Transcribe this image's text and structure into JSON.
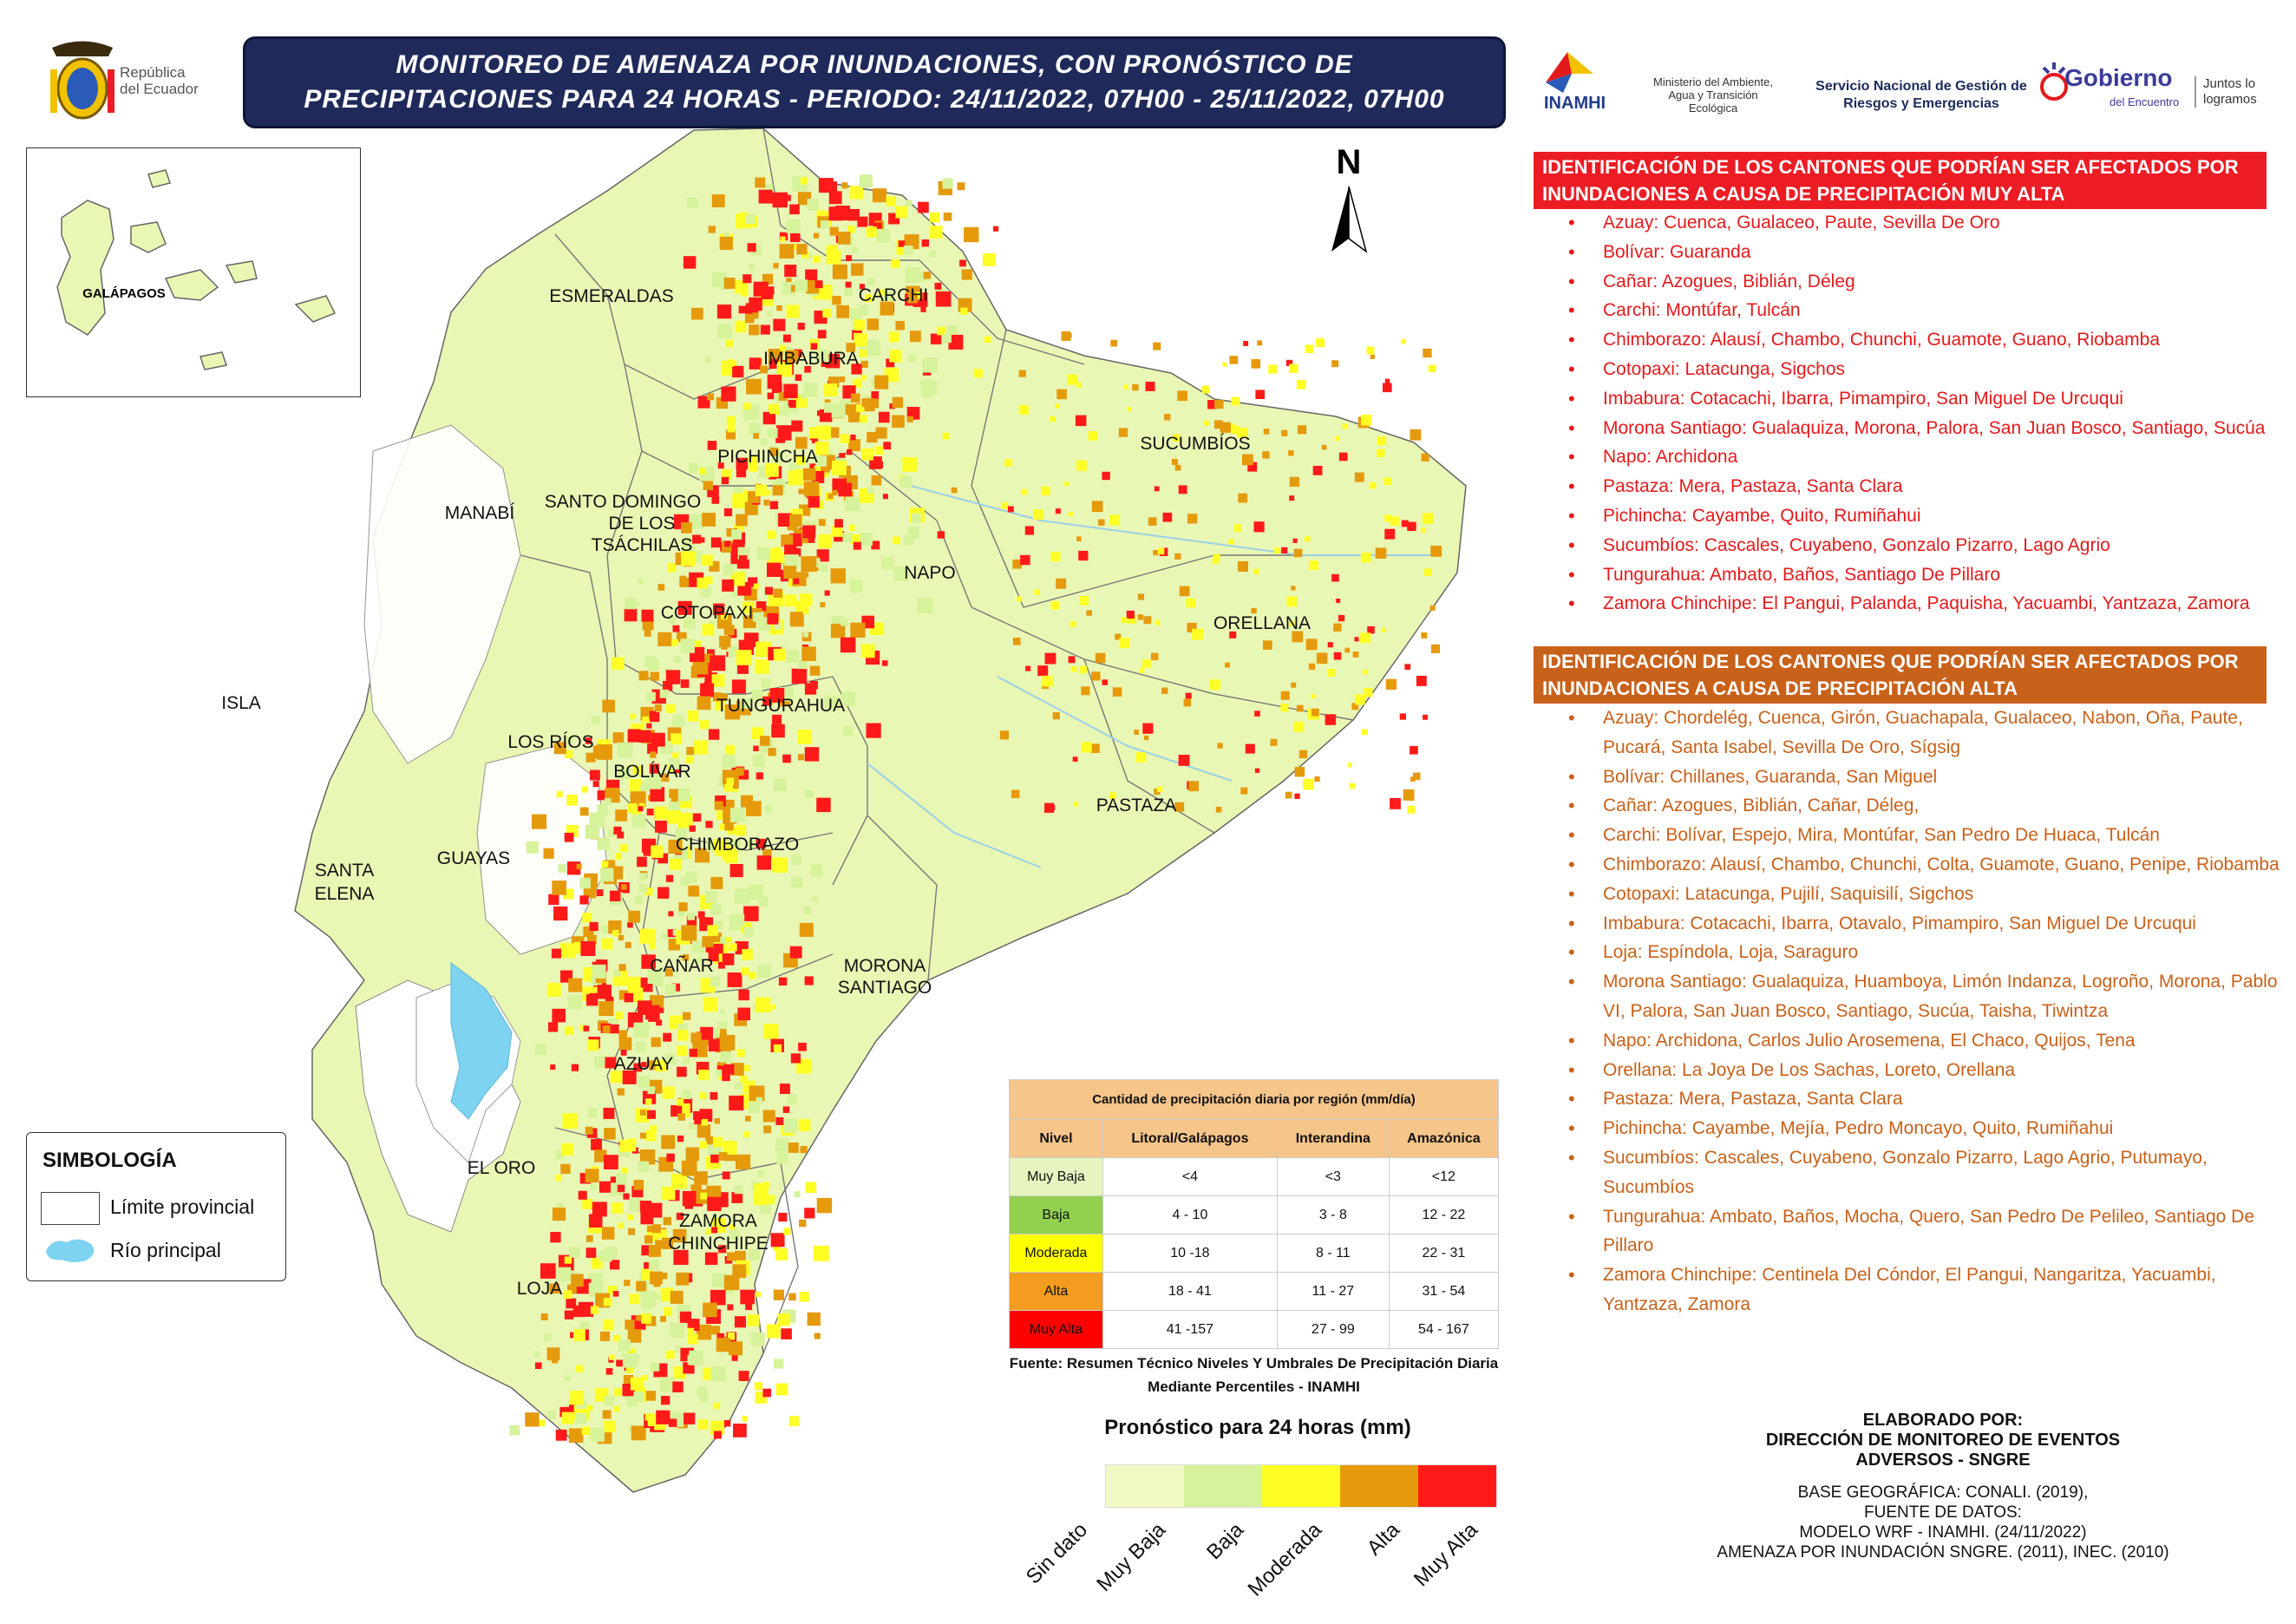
{
  "header": {
    "title_line1": "MONITOREO DE AMENAZA POR INUNDACIONES, CON PRONÓSTICO DE",
    "title_line2": "PRECIPITACIONES  PARA 24  HORAS - PERIODO: 24/11/2022, 07H00 - 25/11/2022, 07H00",
    "republica": "República\ndel Ecuador",
    "inamhi": "INAMHI",
    "ministerio": "Ministerio del Ambiente, Agua y Transición Ecológica",
    "sngre": "Servicio Nacional de Gestión de Riesgos y Emergencias",
    "gobierno": "Gobierno",
    "gobierno_sub": "del Encuentro",
    "juntos": "Juntos lo logramos"
  },
  "map": {
    "north": "N",
    "inset_label": "GALÁPAGOS",
    "provinces": [
      {
        "name": "ESMERALDAS"
      },
      {
        "name": "CARCHI"
      },
      {
        "name": "IMBABURA"
      },
      {
        "name": "SUCUMBÍOS"
      },
      {
        "name": "PICHINCHA"
      },
      {
        "name": "MANABÍ"
      },
      {
        "name": "SANTO DOMINGO"
      },
      {
        "name": "DE LOS"
      },
      {
        "name": "TSÁCHILAS"
      },
      {
        "name": "NAPO"
      },
      {
        "name": "COTOPAXI"
      },
      {
        "name": "ORELLANA"
      },
      {
        "name": "ISLA"
      },
      {
        "name": "TUNGURAHUA"
      },
      {
        "name": "LOS RÍOS"
      },
      {
        "name": "BOLÍVAR"
      },
      {
        "name": "PASTAZA"
      },
      {
        "name": "SANTA"
      },
      {
        "name": "ELENA"
      },
      {
        "name": "GUAYAS"
      },
      {
        "name": "CHIMBORAZO"
      },
      {
        "name": "CAÑAR"
      },
      {
        "name": "MORONA"
      },
      {
        "name": "SANTIAGO"
      },
      {
        "name": "AZUAY"
      },
      {
        "name": "EL ORO"
      },
      {
        "name": "ZAMORA"
      },
      {
        "name": "CHINCHIPE"
      },
      {
        "name": "LOJA"
      }
    ]
  },
  "symbology": {
    "title": "SIMBOLOGÍA",
    "items": [
      {
        "label": "Límite provincial"
      },
      {
        "label": "Río principal"
      }
    ]
  },
  "muy_alta": {
    "header": "IDENTIFICACIÓN DE LOS CANTONES QUE PODRÍAN SER AFECTADOS POR INUNDACIONES A CAUSA DE  PRECIPITACIÓN MUY ALTA",
    "color": "#ec1c24",
    "items": [
      "Azuay: Cuenca, Gualaceo, Paute, Sevilla De Oro",
      "Bolívar: Guaranda",
      "Cañar: Azogues, Biblián, Déleg",
      "Carchi: Montúfar, Tulcán",
      "Chimborazo: Alausí, Chambo, Chunchi, Guamote, Guano, Riobamba",
      "Cotopaxi: Latacunga, Sigchos",
      "Imbabura: Cotacachi, Ibarra, Pimampiro, San Miguel De Urcuqui",
      "Morona Santiago: Gualaquiza, Morona, Palora, San Juan Bosco, Santiago, Sucúa",
      "Napo: Archidona",
      "Pastaza: Mera, Pastaza, Santa Clara",
      "Pichincha: Cayambe, Quito, Rumiñahui",
      "Sucumbíos: Cascales, Cuyabeno, Gonzalo Pizarro, Lago Agrio",
      "Tungurahua: Ambato, Baños, Santiago De Pillaro",
      "Zamora Chinchipe: El Pangui, Palanda, Paquisha, Yacuambi, Yantzaza, Zamora"
    ]
  },
  "alta": {
    "header": "IDENTIFICACIÓN DE LOS CANTONES QUE PODRÍAN SER AFECTADOS POR INUNDACIONES A CAUSA DE  PRECIPITACIÓN  ALTA",
    "color": "#c8611a",
    "items": [
      "Azuay: Chordelég, Cuenca, Girón, Guachapala, Gualaceo, Nabon, Oña, Paute, Pucará, Santa Isabel, Sevilla De Oro, Sígsig",
      "Bolívar: Chillanes, Guaranda, San Miguel",
      "Cañar: Azogues, Biblián, Cañar, Déleg,",
      "Carchi: Bolívar, Espejo, Mira, Montúfar, San Pedro De Huaca, Tulcán",
      "Chimborazo: Alausí, Chambo, Chunchi, Colta, Guamote, Guano, Penipe, Riobamba",
      "Cotopaxi: Latacunga, Pujilí, Saquisilí, Sigchos",
      "Imbabura: Cotacachi, Ibarra, Otavalo, Pimampiro, San Miguel De Urcuqui",
      "Loja: Espíndola, Loja, Saraguro",
      "Morona Santiago: Gualaquiza, Huamboya, Limón Indanza, Logroño, Morona, Pablo VI, Palora, San Juan Bosco, Santiago, Sucúa, Taisha, Tiwintza",
      "Napo: Archidona, Carlos Julio Arosemena, El Chaco, Quijos, Tena",
      "Orellana: La Joya De Los Sachas, Loreto, Orellana",
      "Pastaza: Mera, Pastaza, Santa Clara",
      "Pichincha: Cayambe, Mejía, Pedro Moncayo, Quito, Rumiñahui",
      "Sucumbíos: Cascales, Cuyabeno, Gonzalo Pizarro, Lago Agrio, Putumayo, Sucumbíos",
      "Tungurahua: Ambato, Baños, Mocha, Quero, San Pedro De Pelileo, Santiago De Pillaro",
      "Zamora Chinchipe: Centinela Del Cóndor, El Pangui, Nangaritza, Yacuambi, Yantzaza, Zamora"
    ]
  },
  "table": {
    "caption": "Cantidad de precipitación diaria por región (mm/día)",
    "headers": [
      "Nivel",
      "Litoral/Galápagos",
      "Interandina",
      "Amazónica"
    ],
    "rows": [
      {
        "nivel": "Muy Baja",
        "color": "#e6f5c0",
        "litoral": "<4",
        "interandina": "<3",
        "amazonica": "<12"
      },
      {
        "nivel": "Baja",
        "color": "#92d050",
        "litoral": "4 - 10",
        "interandina": "3 - 8",
        "amazonica": "12 - 22"
      },
      {
        "nivel": "Moderada",
        "color": "#ffff00",
        "litoral": "10 -18",
        "interandina": "8 - 11",
        "amazonica": "22 - 31"
      },
      {
        "nivel": "Alta",
        "color": "#f39c1f",
        "litoral": "18 - 41",
        "interandina": "11 - 27",
        "amazonica": "31 - 54"
      },
      {
        "nivel": "Muy Alta",
        "color": "#ff0000",
        "litoral": "41 -157",
        "interandina": "27 - 99",
        "amazonica": "54 - 167"
      }
    ],
    "fuente": "Fuente: Resumen Técnico Niveles Y Umbrales De Precipitación Diaria Mediante Percentiles - INAMHI"
  },
  "legend": {
    "title": "Pronóstico para 24 horas (mm)",
    "classes": [
      {
        "label": "Sin dato",
        "color": "#f3f9c4"
      },
      {
        "label": "Muy Baja",
        "color": "#d6f29a"
      },
      {
        "label": "Baja",
        "color": "#ffff26"
      },
      {
        "label": "Moderada",
        "color": "#e59a0c"
      },
      {
        "label": "Alta",
        "color": "#ff1a1a"
      },
      {
        "label": "Muy Alta",
        "color": "#ff1a1a"
      }
    ]
  },
  "credits": {
    "l1": "ELABORADO POR:",
    "l2": "DIRECCIÓN DE MONITOREO DE EVENTOS",
    "l3": "ADVERSOS - SNGRE",
    "l4": "BASE GEOGRÁFICA: CONALI. (2019),",
    "l5": "FUENTE DE DATOS:",
    "l6": "MODELO WRF - INAMHI. (24/11/2022)",
    "l7": "AMENAZA POR INUNDACIÓN SNGRE. (2011), INEC. (2010)"
  }
}
